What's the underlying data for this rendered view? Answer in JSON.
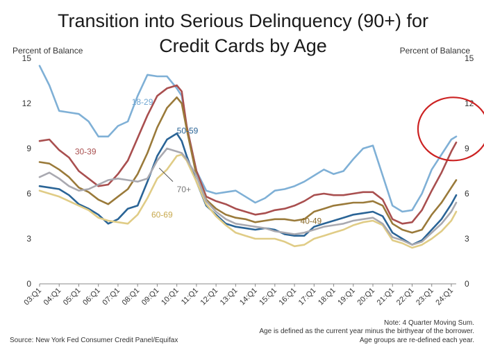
{
  "chart_data": {
    "type": "line",
    "title_line1": "Transition into Serious Delinquency (90+) for",
    "title_line2": "Credit Cards by Age",
    "ylabel_left": "Percent of Balance",
    "ylabel_right": "Percent of Balance",
    "ylim": [
      0,
      15
    ],
    "yticks": [
      0,
      3,
      6,
      9,
      12,
      15
    ],
    "x_tick_labels": [
      "03:Q1",
      "04:Q1",
      "05:Q1",
      "06:Q1",
      "07:Q1",
      "08:Q1",
      "09:Q1",
      "10:Q1",
      "11:Q1",
      "12:Q1",
      "13:Q1",
      "14:Q1",
      "15:Q1",
      "16:Q1",
      "17:Q1",
      "18:Q1",
      "19:Q1",
      "20:Q1",
      "21:Q1",
      "22:Q1",
      "23:Q1",
      "24:Q1"
    ],
    "series": [
      {
        "name": "18-29",
        "color": "#7fb0d6",
        "label_color": "#6fa6d2",
        "points": [
          [
            2003.0,
            14.5
          ],
          [
            2003.5,
            13.2
          ],
          [
            2004.0,
            11.5
          ],
          [
            2004.5,
            11.4
          ],
          [
            2005.0,
            11.3
          ],
          [
            2005.5,
            10.8
          ],
          [
            2006.0,
            9.8
          ],
          [
            2006.5,
            9.8
          ],
          [
            2007.0,
            10.5
          ],
          [
            2007.5,
            10.8
          ],
          [
            2008.0,
            12.5
          ],
          [
            2008.5,
            13.9
          ],
          [
            2009.0,
            13.8
          ],
          [
            2009.5,
            13.8
          ],
          [
            2010.0,
            13.0
          ],
          [
            2010.25,
            12.5
          ],
          [
            2010.5,
            10.5
          ],
          [
            2011.0,
            7.5
          ],
          [
            2011.5,
            6.2
          ],
          [
            2012.0,
            6.0
          ],
          [
            2012.5,
            6.1
          ],
          [
            2013.0,
            6.2
          ],
          [
            2013.5,
            5.8
          ],
          [
            2014.0,
            5.4
          ],
          [
            2014.5,
            5.7
          ],
          [
            2015.0,
            6.2
          ],
          [
            2015.5,
            6.3
          ],
          [
            2016.0,
            6.5
          ],
          [
            2016.5,
            6.8
          ],
          [
            2017.0,
            7.2
          ],
          [
            2017.5,
            7.6
          ],
          [
            2018.0,
            7.3
          ],
          [
            2018.5,
            7.5
          ],
          [
            2019.0,
            8.3
          ],
          [
            2019.5,
            9.0
          ],
          [
            2020.0,
            9.2
          ],
          [
            2020.5,
            7.2
          ],
          [
            2021.0,
            5.2
          ],
          [
            2021.5,
            4.8
          ],
          [
            2022.0,
            4.9
          ],
          [
            2022.5,
            6.0
          ],
          [
            2023.0,
            7.6
          ],
          [
            2023.5,
            8.6
          ],
          [
            2024.0,
            9.6
          ],
          [
            2024.25,
            9.8
          ]
        ]
      },
      {
        "name": "30-39",
        "color": "#a94f4f",
        "label_color": "#a94f4f",
        "points": [
          [
            2003.0,
            9.5
          ],
          [
            2003.5,
            9.6
          ],
          [
            2004.0,
            8.9
          ],
          [
            2004.5,
            8.4
          ],
          [
            2005.0,
            7.5
          ],
          [
            2005.5,
            7.0
          ],
          [
            2006.0,
            6.5
          ],
          [
            2006.5,
            6.6
          ],
          [
            2007.0,
            7.3
          ],
          [
            2007.5,
            8.2
          ],
          [
            2008.0,
            9.7
          ],
          [
            2008.5,
            11.2
          ],
          [
            2009.0,
            12.5
          ],
          [
            2009.5,
            13.0
          ],
          [
            2010.0,
            13.2
          ],
          [
            2010.25,
            12.8
          ],
          [
            2010.5,
            10.5
          ],
          [
            2011.0,
            7.5
          ],
          [
            2011.5,
            5.8
          ],
          [
            2012.0,
            5.5
          ],
          [
            2012.5,
            5.3
          ],
          [
            2013.0,
            5.0
          ],
          [
            2013.5,
            4.8
          ],
          [
            2014.0,
            4.6
          ],
          [
            2014.5,
            4.7
          ],
          [
            2015.0,
            4.9
          ],
          [
            2015.5,
            5.0
          ],
          [
            2016.0,
            5.2
          ],
          [
            2016.5,
            5.5
          ],
          [
            2017.0,
            5.9
          ],
          [
            2017.5,
            6.0
          ],
          [
            2018.0,
            5.9
          ],
          [
            2018.5,
            5.9
          ],
          [
            2019.0,
            6.0
          ],
          [
            2019.5,
            6.1
          ],
          [
            2020.0,
            6.1
          ],
          [
            2020.5,
            5.6
          ],
          [
            2021.0,
            4.3
          ],
          [
            2021.5,
            4.0
          ],
          [
            2022.0,
            4.1
          ],
          [
            2022.5,
            4.9
          ],
          [
            2023.0,
            6.2
          ],
          [
            2023.5,
            7.4
          ],
          [
            2024.0,
            8.8
          ],
          [
            2024.25,
            9.4
          ]
        ]
      },
      {
        "name": "40-49",
        "color": "#9a7a3a",
        "label_color": "#8a6a2a",
        "points": [
          [
            2003.0,
            8.1
          ],
          [
            2003.5,
            8.0
          ],
          [
            2004.0,
            7.6
          ],
          [
            2004.5,
            7.1
          ],
          [
            2005.0,
            6.4
          ],
          [
            2005.5,
            6.1
          ],
          [
            2006.0,
            5.6
          ],
          [
            2006.5,
            5.3
          ],
          [
            2007.0,
            5.8
          ],
          [
            2007.5,
            6.3
          ],
          [
            2008.0,
            7.3
          ],
          [
            2008.5,
            8.7
          ],
          [
            2009.0,
            10.4
          ],
          [
            2009.5,
            11.7
          ],
          [
            2010.0,
            12.4
          ],
          [
            2010.25,
            12.0
          ],
          [
            2010.5,
            10.3
          ],
          [
            2011.0,
            7.2
          ],
          [
            2011.5,
            5.6
          ],
          [
            2012.0,
            5.0
          ],
          [
            2012.5,
            4.6
          ],
          [
            2013.0,
            4.4
          ],
          [
            2013.5,
            4.3
          ],
          [
            2014.0,
            4.1
          ],
          [
            2014.5,
            4.2
          ],
          [
            2015.0,
            4.3
          ],
          [
            2015.5,
            4.3
          ],
          [
            2016.0,
            4.2
          ],
          [
            2016.5,
            4.3
          ],
          [
            2017.0,
            4.8
          ],
          [
            2017.5,
            5.0
          ],
          [
            2018.0,
            5.2
          ],
          [
            2018.5,
            5.3
          ],
          [
            2019.0,
            5.4
          ],
          [
            2019.5,
            5.4
          ],
          [
            2020.0,
            5.5
          ],
          [
            2020.5,
            5.2
          ],
          [
            2021.0,
            4.0
          ],
          [
            2021.5,
            3.6
          ],
          [
            2022.0,
            3.4
          ],
          [
            2022.5,
            3.6
          ],
          [
            2023.0,
            4.6
          ],
          [
            2023.5,
            5.4
          ],
          [
            2024.0,
            6.4
          ],
          [
            2024.25,
            6.9
          ]
        ]
      },
      {
        "name": "50-59",
        "color": "#2a6496",
        "label_color": "#2a6496",
        "points": [
          [
            2003.0,
            6.5
          ],
          [
            2003.5,
            6.4
          ],
          [
            2004.0,
            6.3
          ],
          [
            2004.5,
            5.9
          ],
          [
            2005.0,
            5.3
          ],
          [
            2005.5,
            5.0
          ],
          [
            2006.0,
            4.6
          ],
          [
            2006.5,
            4.0
          ],
          [
            2007.0,
            4.3
          ],
          [
            2007.5,
            5.0
          ],
          [
            2008.0,
            5.2
          ],
          [
            2008.5,
            6.8
          ],
          [
            2009.0,
            8.5
          ],
          [
            2009.5,
            9.6
          ],
          [
            2010.0,
            10.0
          ],
          [
            2010.25,
            9.5
          ],
          [
            2010.5,
            8.5
          ],
          [
            2011.0,
            6.8
          ],
          [
            2011.5,
            5.2
          ],
          [
            2012.0,
            4.6
          ],
          [
            2012.5,
            4.0
          ],
          [
            2013.0,
            3.8
          ],
          [
            2013.5,
            3.7
          ],
          [
            2014.0,
            3.6
          ],
          [
            2014.5,
            3.7
          ],
          [
            2015.0,
            3.6
          ],
          [
            2015.5,
            3.3
          ],
          [
            2016.0,
            3.2
          ],
          [
            2016.5,
            3.2
          ],
          [
            2017.0,
            3.8
          ],
          [
            2017.5,
            4.0
          ],
          [
            2018.0,
            4.2
          ],
          [
            2018.5,
            4.4
          ],
          [
            2019.0,
            4.6
          ],
          [
            2019.5,
            4.7
          ],
          [
            2020.0,
            4.8
          ],
          [
            2020.5,
            4.5
          ],
          [
            2021.0,
            3.4
          ],
          [
            2021.5,
            3.0
          ],
          [
            2022.0,
            2.6
          ],
          [
            2022.5,
            2.9
          ],
          [
            2023.0,
            3.6
          ],
          [
            2023.5,
            4.3
          ],
          [
            2024.0,
            5.3
          ],
          [
            2024.25,
            5.9
          ]
        ]
      },
      {
        "name": "60-69",
        "color": "#e0cc86",
        "label_color": "#c8a94e",
        "points": [
          [
            2003.0,
            6.2
          ],
          [
            2003.5,
            6.0
          ],
          [
            2004.0,
            5.8
          ],
          [
            2004.5,
            5.5
          ],
          [
            2005.0,
            5.2
          ],
          [
            2005.5,
            4.9
          ],
          [
            2006.0,
            4.4
          ],
          [
            2006.5,
            4.2
          ],
          [
            2007.0,
            4.1
          ],
          [
            2007.5,
            4.0
          ],
          [
            2008.0,
            4.6
          ],
          [
            2008.5,
            5.7
          ],
          [
            2009.0,
            7.0
          ],
          [
            2009.5,
            7.6
          ],
          [
            2010.0,
            8.5
          ],
          [
            2010.25,
            8.6
          ],
          [
            2010.5,
            8.2
          ],
          [
            2011.0,
            6.8
          ],
          [
            2011.5,
            5.3
          ],
          [
            2012.0,
            4.5
          ],
          [
            2012.5,
            3.9
          ],
          [
            2013.0,
            3.4
          ],
          [
            2013.5,
            3.2
          ],
          [
            2014.0,
            3.0
          ],
          [
            2014.5,
            3.0
          ],
          [
            2015.0,
            3.0
          ],
          [
            2015.5,
            2.8
          ],
          [
            2016.0,
            2.5
          ],
          [
            2016.5,
            2.6
          ],
          [
            2017.0,
            3.0
          ],
          [
            2017.5,
            3.2
          ],
          [
            2018.0,
            3.4
          ],
          [
            2018.5,
            3.6
          ],
          [
            2019.0,
            3.9
          ],
          [
            2019.5,
            4.1
          ],
          [
            2020.0,
            4.2
          ],
          [
            2020.5,
            3.9
          ],
          [
            2021.0,
            2.9
          ],
          [
            2021.5,
            2.7
          ],
          [
            2022.0,
            2.4
          ],
          [
            2022.5,
            2.6
          ],
          [
            2023.0,
            3.0
          ],
          [
            2023.5,
            3.5
          ],
          [
            2024.0,
            4.2
          ],
          [
            2024.25,
            4.8
          ]
        ]
      },
      {
        "name": "70+",
        "color": "#a9a9b0",
        "label_color": "#777777",
        "points": [
          [
            2003.0,
            7.1
          ],
          [
            2003.5,
            7.4
          ],
          [
            2004.0,
            7.0
          ],
          [
            2004.5,
            6.5
          ],
          [
            2005.0,
            6.2
          ],
          [
            2005.5,
            6.3
          ],
          [
            2006.0,
            6.6
          ],
          [
            2006.5,
            6.9
          ],
          [
            2007.0,
            7.0
          ],
          [
            2007.5,
            6.9
          ],
          [
            2008.0,
            6.8
          ],
          [
            2008.5,
            7.0
          ],
          [
            2009.0,
            8.2
          ],
          [
            2009.5,
            9.0
          ],
          [
            2010.0,
            8.8
          ],
          [
            2010.25,
            8.7
          ],
          [
            2010.5,
            8.3
          ],
          [
            2011.0,
            7.2
          ],
          [
            2011.5,
            5.5
          ],
          [
            2012.0,
            4.8
          ],
          [
            2012.5,
            4.3
          ],
          [
            2013.0,
            4.0
          ],
          [
            2013.5,
            3.9
          ],
          [
            2014.0,
            3.8
          ],
          [
            2014.5,
            3.7
          ],
          [
            2015.0,
            3.5
          ],
          [
            2015.5,
            3.4
          ],
          [
            2016.0,
            3.3
          ],
          [
            2016.5,
            3.4
          ],
          [
            2017.0,
            3.6
          ],
          [
            2017.5,
            3.8
          ],
          [
            2018.0,
            3.9
          ],
          [
            2018.5,
            4.0
          ],
          [
            2019.0,
            4.2
          ],
          [
            2019.5,
            4.3
          ],
          [
            2020.0,
            4.4
          ],
          [
            2020.5,
            4.0
          ],
          [
            2021.0,
            3.1
          ],
          [
            2021.5,
            2.9
          ],
          [
            2022.0,
            2.6
          ],
          [
            2022.5,
            2.8
          ],
          [
            2023.0,
            3.4
          ],
          [
            2023.5,
            4.0
          ],
          [
            2024.0,
            4.8
          ],
          [
            2024.25,
            5.4
          ]
        ]
      }
    ],
    "series_labels": [
      {
        "text": "18-29",
        "x": 2007.7,
        "y": 11.9
      },
      {
        "text": "30-39",
        "x": 2004.8,
        "y": 8.6
      },
      {
        "text": "50-59",
        "x": 2010.0,
        "y": 10.0
      },
      {
        "text": "70+",
        "x": 2010.0,
        "y": 6.1
      },
      {
        "text": "60-69",
        "x": 2008.7,
        "y": 4.4
      },
      {
        "text": "40-49",
        "x": 2016.3,
        "y": 4.0
      }
    ],
    "annotation": {
      "type": "ellipse",
      "color": "#cc2222",
      "center_x": 2024.1,
      "center_y": 10.3,
      "radius_x": 1.8,
      "radius_y": 2.1
    },
    "notes": [
      "Note: 4 Quarter Moving Sum.",
      "Age is defined as the current year minus the birthyear of the borrower.",
      "Age groups are re-defined each year."
    ],
    "source": "Source: New York Fed Consumer Credit Panel/Equifax"
  }
}
